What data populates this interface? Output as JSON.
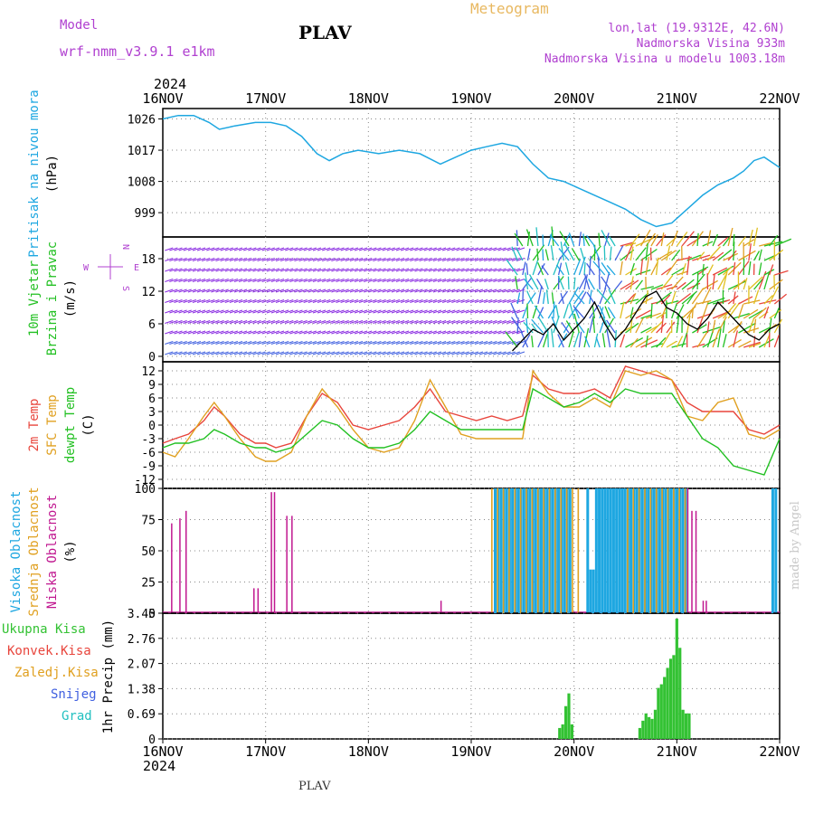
{
  "header": {
    "model_label": "Model",
    "model_name": "wrf-nmm_v3.9.1  e1km",
    "station": "PLAV",
    "title": "Meteogram",
    "coords": "lon,lat (19.9312E, 42.6N)",
    "elevation": "Nadmorska Visina 933m",
    "model_elevation": "Nadmorska Visina u modelu 1003.18m",
    "footer_station": "PLAV",
    "credit": "made by Angel"
  },
  "colors": {
    "pressure": "#1ea7e1",
    "t2m": "#e8453c",
    "sfc": "#e0a020",
    "dew": "#22c022",
    "low_cloud": "#c01890",
    "mid_cloud": "#e0a020",
    "high_cloud": "#1ea7e1",
    "precip_total": "#33c233",
    "precip_conv": "#e8453c",
    "wind_low": "#8a2be2"
  },
  "chart_data": [
    {
      "type": "line",
      "id": "pressure",
      "ylabel_lines": [
        "Pritisak na nivou mora",
        "(hPa)"
      ],
      "yticks": [
        999,
        1008,
        1017,
        1026
      ],
      "ylim": [
        992,
        1029
      ],
      "x_days": [
        0,
        0.15,
        0.3,
        0.45,
        0.55,
        0.7,
        0.9,
        1.05,
        1.2,
        1.35,
        1.5,
        1.62,
        1.75,
        1.9,
        2.1,
        2.3,
        2.5,
        2.7,
        2.85,
        3.0,
        3.15,
        3.3,
        3.45,
        3.6,
        3.75,
        3.9,
        4.05,
        4.2,
        4.35,
        4.5,
        4.65,
        4.8,
        4.95,
        5.1,
        5.25,
        5.4,
        5.55,
        5.65,
        5.75,
        5.85,
        5.95,
        6.0
      ],
      "values": [
        1026,
        1027,
        1027,
        1025,
        1023,
        1024,
        1025,
        1025,
        1024,
        1021,
        1016,
        1014,
        1016,
        1017,
        1016,
        1017,
        1016,
        1013,
        1015,
        1017,
        1018,
        1019,
        1018,
        1013,
        1009,
        1008,
        1006,
        1004,
        1002,
        1000,
        997,
        995,
        996,
        1000,
        1004,
        1007,
        1009,
        1011,
        1014,
        1015,
        1013,
        1012
      ]
    },
    {
      "type": "line",
      "id": "wind",
      "ylabel_lines": [
        "10m Vjetar",
        "Brzina i Pravac",
        "(m/s)"
      ],
      "yticks": [
        0,
        6,
        12,
        18
      ],
      "ylim": [
        -1,
        22
      ],
      "compass": {
        "n": "N",
        "s": "S",
        "w": "W",
        "e": "E"
      },
      "x_days": [
        3.4,
        3.5,
        3.6,
        3.7,
        3.8,
        3.9,
        4.0,
        4.1,
        4.2,
        4.3,
        4.4,
        4.5,
        4.6,
        4.7,
        4.8,
        4.9,
        5.0,
        5.1,
        5.2,
        5.3,
        5.4,
        5.5,
        5.6,
        5.7,
        5.8,
        5.9,
        6.0
      ],
      "values": [
        1,
        3,
        5,
        4,
        6,
        3,
        5,
        7,
        10,
        6,
        3,
        5,
        8,
        11,
        12,
        9,
        8,
        6,
        5,
        7,
        10,
        8,
        6,
        4,
        3,
        5,
        6
      ]
    },
    {
      "type": "line",
      "id": "temperature",
      "ylabel_lines": [
        "2m Temp",
        "SFC Temp",
        "dewpt Temp",
        "(C)"
      ],
      "yticks": [
        -12,
        -9,
        -6,
        -3,
        0,
        3,
        6,
        9,
        12
      ],
      "ylim": [
        -14,
        14
      ],
      "x_days": [
        0,
        0.12,
        0.25,
        0.4,
        0.5,
        0.6,
        0.75,
        0.9,
        1.0,
        1.1,
        1.25,
        1.4,
        1.55,
        1.7,
        1.85,
        2.0,
        2.15,
        2.3,
        2.45,
        2.6,
        2.75,
        2.9,
        3.05,
        3.2,
        3.35,
        3.5,
        3.6,
        3.75,
        3.9,
        4.05,
        4.2,
        4.35,
        4.5,
        4.65,
        4.8,
        4.95,
        5.1,
        5.25,
        5.4,
        5.55,
        5.7,
        5.85,
        6.0
      ],
      "series": [
        {
          "name": "2m Temp",
          "values": [
            -4,
            -3,
            -2,
            1,
            4,
            2,
            -2,
            -4,
            -4,
            -5,
            -4,
            2,
            7,
            5,
            0,
            -1,
            0,
            1,
            4,
            8,
            3,
            2,
            1,
            2,
            1,
            2,
            11,
            8,
            7,
            7,
            8,
            6,
            13,
            12,
            11,
            10,
            5,
            3,
            3,
            3,
            -1,
            -2,
            0
          ]
        },
        {
          "name": "SFC Temp",
          "values": [
            -6,
            -7,
            -3,
            2,
            5,
            2,
            -3,
            -7,
            -8,
            -8,
            -6,
            2,
            8,
            4,
            -1,
            -5,
            -6,
            -5,
            1,
            10,
            4,
            -2,
            -3,
            -3,
            -3,
            -3,
            12,
            7,
            4,
            4,
            6,
            4,
            12,
            11,
            12,
            10,
            2,
            1,
            5,
            6,
            -2,
            -3,
            -1
          ]
        },
        {
          "name": "dewpt Temp",
          "values": [
            -5,
            -4,
            -4,
            -3,
            -1,
            -2,
            -4,
            -5,
            -5,
            -6,
            -5,
            -2,
            1,
            0,
            -3,
            -5,
            -5,
            -4,
            -1,
            3,
            1,
            -1,
            -1,
            -1,
            -1,
            -1,
            8,
            6,
            4,
            5,
            7,
            5,
            8,
            7,
            7,
            7,
            2,
            -3,
            -5,
            -9,
            -10,
            -11,
            -3
          ]
        }
      ]
    },
    {
      "type": "bar",
      "id": "cloud",
      "ylabel_lines": [
        "Visoka Oblacnost",
        "Srednja Oblacnost",
        "Niska Oblacnost",
        "(%)"
      ],
      "yticks": [
        0,
        25,
        50,
        75,
        100
      ],
      "ylim": [
        0,
        100
      ],
      "low_cloud": {
        "x_days": [
          0.08,
          0.16,
          0.22,
          0.88,
          0.92,
          1.05,
          1.08,
          1.2,
          1.25,
          2.7,
          5.1,
          5.14,
          5.18,
          5.25,
          5.28
        ],
        "values": [
          72,
          76,
          82,
          20,
          20,
          97,
          97,
          78,
          78,
          10,
          100,
          82,
          82,
          10,
          10
        ]
      },
      "high_cloud": {
        "x_start": 3.22,
        "x_end": 3.97,
        "x2_start": 4.12,
        "x2_end": 5.08,
        "values_pct": 100
      },
      "mid_cloud": {
        "x_start": 3.18,
        "x_end": 4.05,
        "x2_start": 4.5,
        "x2_end": 5.12,
        "values_pct": 100
      }
    },
    {
      "type": "bar",
      "id": "precip",
      "ylabel_lines": [
        "1hr Precip (mm)"
      ],
      "yticks": [
        0,
        0.69,
        1.38,
        2.07,
        2.76,
        3.45
      ],
      "ylim": [
        0,
        3.45
      ],
      "legend": [
        "Ukupna Kisa",
        "Konvek.Kisa",
        "Zaledj.Kisa",
        "Snijeg",
        "Grad"
      ],
      "x_days": [
        3.86,
        3.89,
        3.92,
        3.95,
        3.98,
        4.64,
        4.67,
        4.7,
        4.73,
        4.76,
        4.79,
        4.82,
        4.85,
        4.88,
        4.91,
        4.94,
        4.97,
        5.0,
        5.03,
        5.06,
        5.09,
        5.12
      ],
      "values": [
        0.3,
        0.4,
        0.9,
        1.25,
        0.4,
        0.3,
        0.5,
        0.7,
        0.6,
        0.55,
        0.8,
        1.4,
        1.5,
        1.7,
        1.95,
        2.2,
        2.3,
        3.3,
        2.5,
        0.8,
        0.7,
        0.7
      ]
    }
  ],
  "axis": {
    "year": "2024",
    "day_labels": [
      "16NOV",
      "17NOV",
      "18NOV",
      "19NOV",
      "20NOV",
      "21NOV",
      "22NOV"
    ]
  }
}
